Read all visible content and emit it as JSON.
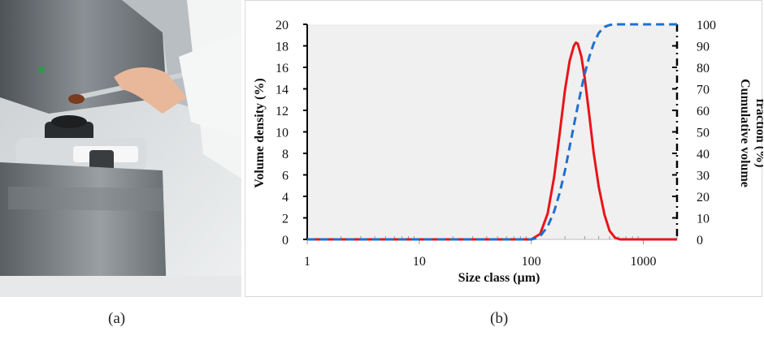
{
  "captions": {
    "a": "(a)",
    "b": "(b)"
  },
  "photo": {
    "description_icon": "laser-diffraction-analyzer-photo",
    "colors": {
      "machine": "#6e7377",
      "sleeve": "#e9eaea",
      "sample": "#7a3b1e"
    }
  },
  "chart_data": {
    "type": "line",
    "title": "",
    "xlabel": "Size class (µm)",
    "ylabel": "Volume density (%)",
    "y2label_lines": [
      "Cumulative volume",
      "fraction (%)"
    ],
    "x_scale": "log",
    "xlim": [
      1,
      2000
    ],
    "ylim": [
      0,
      20
    ],
    "y2lim": [
      0,
      100
    ],
    "x_ticks": [
      1,
      10,
      100,
      1000
    ],
    "x_tick_labels": [
      "1",
      "10",
      "100",
      "1000"
    ],
    "y_ticks": [
      0,
      2,
      4,
      6,
      8,
      10,
      12,
      14,
      16,
      18,
      20
    ],
    "y_tick_labels": [
      "0",
      "2",
      "4",
      "6",
      "8",
      "10",
      "12",
      "14",
      "16",
      "18",
      "20"
    ],
    "y2_ticks": [
      0,
      10,
      20,
      30,
      40,
      50,
      60,
      70,
      80,
      90,
      100
    ],
    "y2_tick_labels": [
      "0",
      "10",
      "20",
      "30",
      "40",
      "50",
      "60",
      "70",
      "80",
      "90",
      "100"
    ],
    "grid": false,
    "plot_background": "#f0f0f0",
    "series": [
      {
        "axis": "left",
        "style": "solid",
        "color": "#e8141a",
        "x": [
          1,
          100,
          120,
          140,
          160,
          180,
          200,
          220,
          240,
          250,
          260,
          280,
          300,
          330,
          360,
          400,
          450,
          500,
          560,
          620,
          700,
          1000,
          2000
        ],
        "values": [
          0,
          0,
          0.5,
          2.4,
          5.8,
          10.0,
          13.9,
          16.6,
          18.0,
          18.3,
          18.2,
          17.0,
          15.0,
          11.5,
          8.1,
          4.9,
          2.3,
          0.8,
          0.15,
          0,
          0,
          0,
          0
        ]
      },
      {
        "axis": "right",
        "style": "dashed",
        "color": "#1f6fd1",
        "x": [
          1,
          100,
          110,
          120,
          140,
          160,
          180,
          200,
          220,
          240,
          260,
          280,
          300,
          330,
          360,
          400,
          450,
          500,
          560,
          1000,
          2000
        ],
        "values": [
          0,
          0,
          0.5,
          1.5,
          6,
          13,
          22,
          32,
          43,
          53,
          62,
          70,
          77,
          85,
          91,
          96,
          98.8,
          99.7,
          100,
          100,
          100
        ]
      }
    ]
  }
}
